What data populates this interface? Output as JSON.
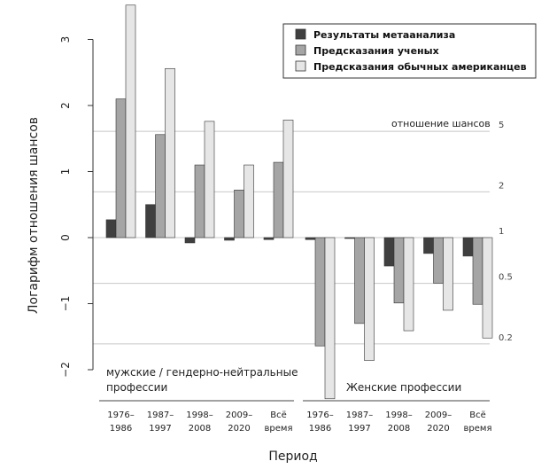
{
  "chart_data": {
    "type": "bar",
    "xlabel": "Период",
    "ylabel": "Логарифм отношения шансов",
    "ylim": [
      -2.2,
      3.6
    ],
    "yticks": [
      {
        "value": 3,
        "label": "3"
      },
      {
        "value": 2,
        "label": "2"
      },
      {
        "value": 1,
        "label": "1"
      },
      {
        "value": 0,
        "label": "0"
      },
      {
        "value": -1,
        "label": "−1"
      },
      {
        "value": -2,
        "label": "−2"
      }
    ],
    "legend_position": "top-right",
    "series": [
      {
        "name": "Результаты метаанализа",
        "color": "#3f3f3f"
      },
      {
        "name": "Предсказания ученых",
        "color": "#a5a5a5"
      },
      {
        "name": "Предсказания обычных американцев",
        "color": "#e6e6e6"
      }
    ],
    "groups": [
      {
        "label_lines": [
          "мужские / гендерно-нейтральные",
          "профессии"
        ],
        "categories": [
          {
            "lines": [
              "1976–",
              "1986"
            ],
            "values": [
              0.27,
              2.1,
              3.52
            ]
          },
          {
            "lines": [
              "1987–",
              "1997"
            ],
            "values": [
              0.5,
              1.56,
              2.56
            ]
          },
          {
            "lines": [
              "1998–",
              "2008"
            ],
            "values": [
              -0.08,
              1.1,
              1.76
            ]
          },
          {
            "lines": [
              "2009–",
              "2020"
            ],
            "values": [
              -0.04,
              0.72,
              1.1
            ]
          },
          {
            "lines": [
              "Всё",
              "время"
            ],
            "values": [
              -0.03,
              1.14,
              1.78
            ]
          }
        ]
      },
      {
        "label_lines": [
          "Женские профессии"
        ],
        "categories": [
          {
            "lines": [
              "1976–",
              "1986"
            ],
            "values": [
              -0.03,
              -1.64,
              -2.44
            ]
          },
          {
            "lines": [
              "1987–",
              "1997"
            ],
            "values": [
              -0.01,
              -1.3,
              -1.86
            ]
          },
          {
            "lines": [
              "1998–",
              "2008"
            ],
            "values": [
              -0.43,
              -0.99,
              -1.41
            ]
          },
          {
            "lines": [
              "2009–",
              "2020"
            ],
            "values": [
              -0.24,
              -0.69,
              -1.1
            ]
          },
          {
            "lines": [
              "Всё",
              "время"
            ],
            "values": [
              -0.28,
              -1.01,
              -1.52
            ]
          }
        ]
      }
    ],
    "odds_ratio_axis": {
      "title": "отношение шансов",
      "lines": [
        {
          "value": 1.609,
          "label": "5"
        },
        {
          "value": 0.693,
          "label": "2"
        },
        {
          "value": 0,
          "label": "1"
        },
        {
          "value": -0.693,
          "label": "0.5"
        },
        {
          "value": -1.609,
          "label": "0.2"
        }
      ]
    }
  }
}
